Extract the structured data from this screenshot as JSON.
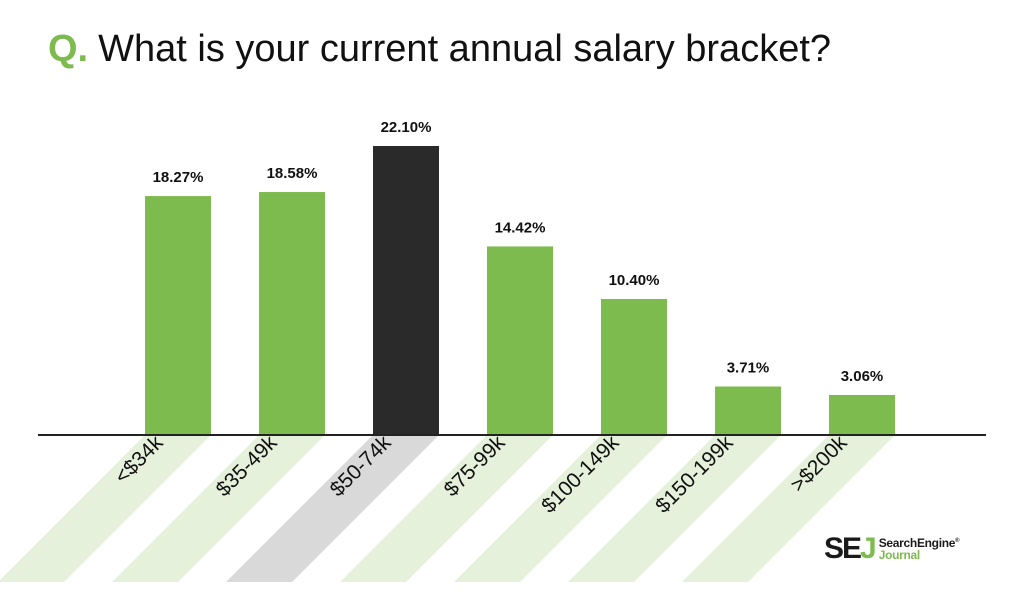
{
  "title": {
    "prefix": "Q.",
    "text": "What is your current annual salary bracket?"
  },
  "colors": {
    "bar": "#7dbb4e",
    "highlight": "#2a2a2a",
    "stripe": "#e6f1dc",
    "stripe_highlight": "#d9d9d9",
    "axis": "#222222"
  },
  "chart_data": {
    "type": "bar",
    "categories": [
      "<$34k",
      "$35-49k",
      "$50-74k",
      "$75-99k",
      "$100-149k",
      "$150-199k",
      ">$200k"
    ],
    "values": [
      18.27,
      18.58,
      22.1,
      14.42,
      10.4,
      3.71,
      3.06
    ],
    "value_labels": [
      "18.27%",
      "18.58%",
      "22.10%",
      "14.42%",
      "10.40%",
      "3.71%",
      "3.06%"
    ],
    "highlight_index": 2,
    "title": "What is your current annual salary bracket?",
    "xlabel": "",
    "ylabel": "",
    "ylim": [
      0,
      22.1
    ],
    "grid": false,
    "legend": "none"
  },
  "logo": {
    "mark_se": "SE",
    "mark_j": "J",
    "line1": "SearchEngine",
    "reg": "®",
    "line2": "Journal"
  }
}
